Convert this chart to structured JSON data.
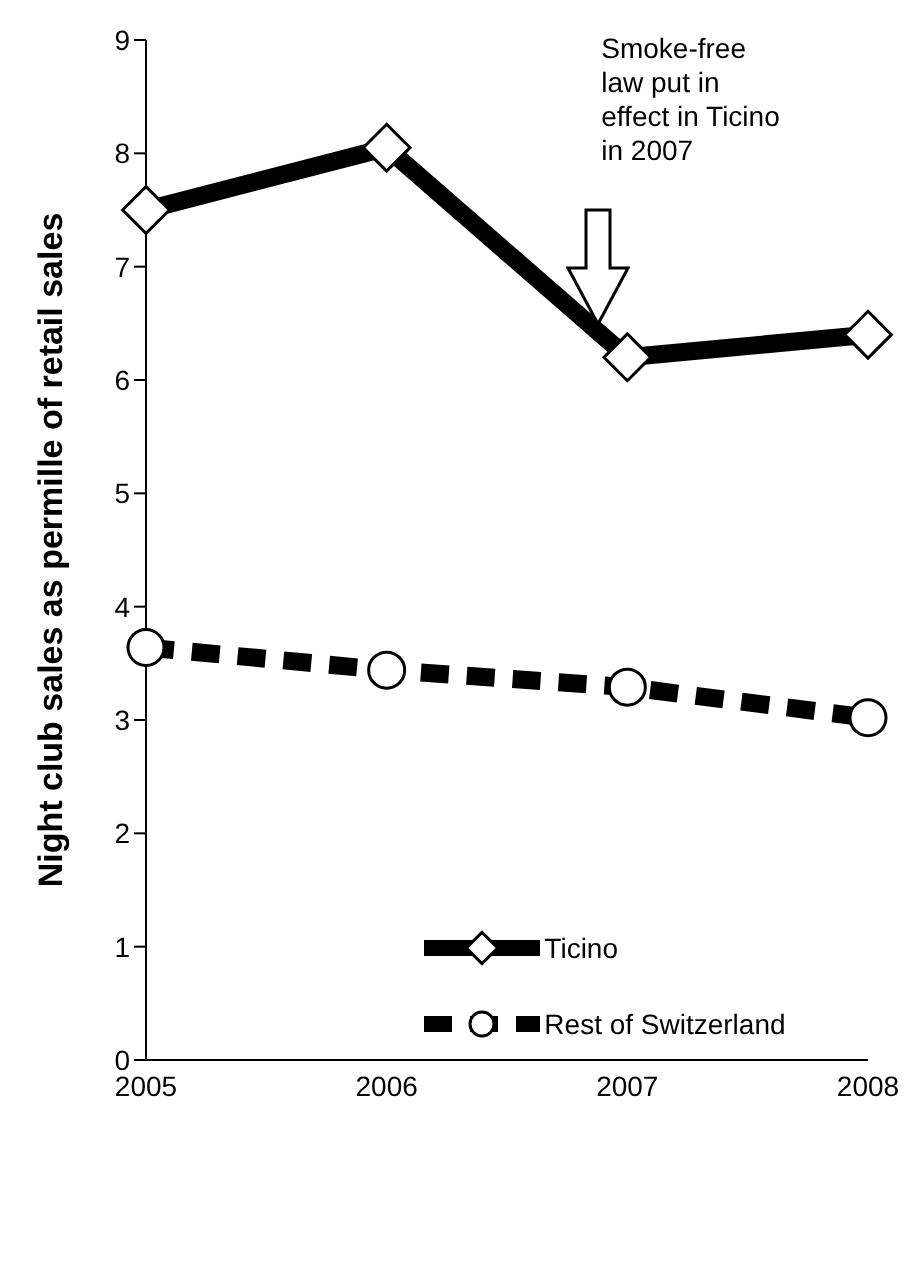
{
  "chart_data": {
    "type": "line",
    "ylabel": "Night club sales as permille of retail sales",
    "categories": [
      "2005",
      "2006",
      "2007",
      "2008"
    ],
    "series": [
      {
        "name": "Ticino",
        "color": "#000000",
        "values": [
          7.5,
          8.05,
          6.2,
          6.4
        ],
        "marker": "diamond",
        "line_style": "solid"
      },
      {
        "name": "Rest of Switzerland",
        "color": "#000000",
        "values": [
          3.64,
          3.44,
          3.29,
          3.02
        ],
        "marker": "circle",
        "line_style": "dashed"
      }
    ],
    "ylim": [
      0,
      9
    ],
    "yticks": [
      0,
      1,
      2,
      3,
      4,
      5,
      6,
      7,
      8,
      9
    ],
    "grid": false,
    "legend": "bottom",
    "annotations": [
      "Smoke-free law put in effect in Ticino in 2007"
    ]
  }
}
